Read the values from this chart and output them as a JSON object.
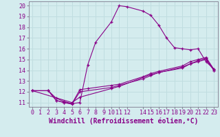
{
  "xlabel": "Windchill (Refroidissement éolien,°C)",
  "background_color": "#d4ecee",
  "line_color": "#880088",
  "grid_color": "#c0dde0",
  "xlim": [
    -0.5,
    23.5
  ],
  "ylim": [
    10.6,
    20.4
  ],
  "xticks": [
    0,
    1,
    2,
    3,
    4,
    5,
    6,
    7,
    8,
    9,
    10,
    11,
    12,
    14,
    15,
    16,
    17,
    18,
    19,
    20,
    21,
    22,
    23
  ],
  "yticks": [
    11,
    12,
    13,
    14,
    15,
    16,
    17,
    18,
    19,
    20
  ],
  "line1_x": [
    0,
    2,
    3,
    4,
    5,
    6,
    7,
    8,
    10,
    11,
    12,
    14,
    15,
    16,
    17,
    18,
    19,
    20,
    21,
    22,
    23
  ],
  "line1_y": [
    12.1,
    12.1,
    11.2,
    11.0,
    10.9,
    11.0,
    14.5,
    16.6,
    18.5,
    20.0,
    19.9,
    19.5,
    19.1,
    18.2,
    17.0,
    16.1,
    16.0,
    15.9,
    16.0,
    14.8,
    14.1
  ],
  "line2_x": [
    0,
    2,
    3,
    4,
    5,
    6,
    7,
    10,
    11,
    14,
    15,
    16,
    19,
    20,
    21,
    22,
    23
  ],
  "line2_y": [
    12.1,
    12.1,
    11.4,
    11.1,
    10.9,
    12.2,
    12.3,
    12.6,
    12.7,
    13.4,
    13.7,
    13.9,
    14.4,
    14.8,
    15.0,
    15.2,
    14.1
  ],
  "line3_x": [
    0,
    2,
    3,
    4,
    5,
    6,
    10,
    11,
    14,
    15,
    16,
    19,
    20,
    21,
    22,
    23
  ],
  "line3_y": [
    12.1,
    12.1,
    11.2,
    11.0,
    10.85,
    12.0,
    12.4,
    12.6,
    13.2,
    13.5,
    13.8,
    14.2,
    14.6,
    14.9,
    15.1,
    14.0
  ],
  "line4_x": [
    0,
    5,
    6,
    10,
    11,
    15,
    19,
    20,
    21,
    22,
    23
  ],
  "line4_y": [
    12.1,
    11.0,
    11.5,
    12.3,
    12.5,
    13.6,
    14.3,
    14.6,
    14.8,
    15.0,
    14.0
  ],
  "font_color": "#880088",
  "tick_labelsize": 6,
  "xlabel_fontsize": 7,
  "axis_color": "#888899"
}
